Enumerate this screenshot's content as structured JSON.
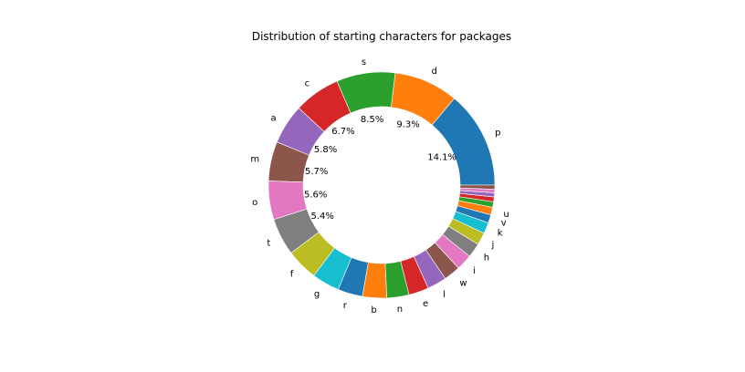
{
  "chart_data": {
    "type": "pie",
    "title": "Distribution of starting characters for packages",
    "donut": true,
    "start_angle_deg": 0,
    "direction": "counterclockwise",
    "slices": [
      {
        "label": "p",
        "value": 14.1,
        "pct_label": "14.1%",
        "color": "#1f77b4"
      },
      {
        "label": "d",
        "value": 9.3,
        "pct_label": "9.3%",
        "color": "#ff7f0e"
      },
      {
        "label": "s",
        "value": 8.5,
        "pct_label": "8.5%",
        "color": "#2ca02c"
      },
      {
        "label": "c",
        "value": 6.7,
        "pct_label": "6.7%",
        "color": "#d62728"
      },
      {
        "label": "a",
        "value": 5.8,
        "pct_label": "5.8%",
        "color": "#9467bd"
      },
      {
        "label": "m",
        "value": 5.7,
        "pct_label": "5.7%",
        "color": "#8c564b"
      },
      {
        "label": "o",
        "value": 5.6,
        "pct_label": "5.6%",
        "color": "#e377c2"
      },
      {
        "label": "t",
        "value": 5.4,
        "pct_label": "5.4%",
        "color": "#7f7f7f"
      },
      {
        "label": "f",
        "value": 4.6,
        "pct_label": "",
        "color": "#bcbd22"
      },
      {
        "label": "g",
        "value": 4.0,
        "pct_label": "",
        "color": "#17becf"
      },
      {
        "label": "r",
        "value": 3.6,
        "pct_label": "",
        "color": "#1f77b4"
      },
      {
        "label": "b",
        "value": 3.5,
        "pct_label": "",
        "color": "#ff7f0e"
      },
      {
        "label": "n",
        "value": 3.2,
        "pct_label": "",
        "color": "#2ca02c"
      },
      {
        "label": "e",
        "value": 2.9,
        "pct_label": "",
        "color": "#d62728"
      },
      {
        "label": "l",
        "value": 2.8,
        "pct_label": "",
        "color": "#9467bd"
      },
      {
        "label": "w",
        "value": 2.4,
        "pct_label": "",
        "color": "#8c564b"
      },
      {
        "label": "i",
        "value": 2.3,
        "pct_label": "",
        "color": "#e377c2"
      },
      {
        "label": "h",
        "value": 2.1,
        "pct_label": "",
        "color": "#7f7f7f"
      },
      {
        "label": "j",
        "value": 1.8,
        "pct_label": "",
        "color": "#bcbd22"
      },
      {
        "label": "k",
        "value": 1.6,
        "pct_label": "",
        "color": "#17becf"
      },
      {
        "label": "v",
        "value": 1.2,
        "pct_label": "",
        "color": "#1f77b4"
      },
      {
        "label": "u",
        "value": 1.1,
        "pct_label": "",
        "color": "#ff7f0e"
      },
      {
        "label": "",
        "value": 0.8,
        "pct_label": "",
        "color": "#2ca02c"
      },
      {
        "label": "",
        "value": 0.7,
        "pct_label": "",
        "color": "#d62728"
      },
      {
        "label": "",
        "value": 0.6,
        "pct_label": "",
        "color": "#9467bd"
      },
      {
        "label": "",
        "value": 0.5,
        "pct_label": "",
        "color": "#e377c2"
      },
      {
        "label": "",
        "value": 0.6,
        "pct_label": "",
        "color": "#8c564b"
      }
    ]
  }
}
